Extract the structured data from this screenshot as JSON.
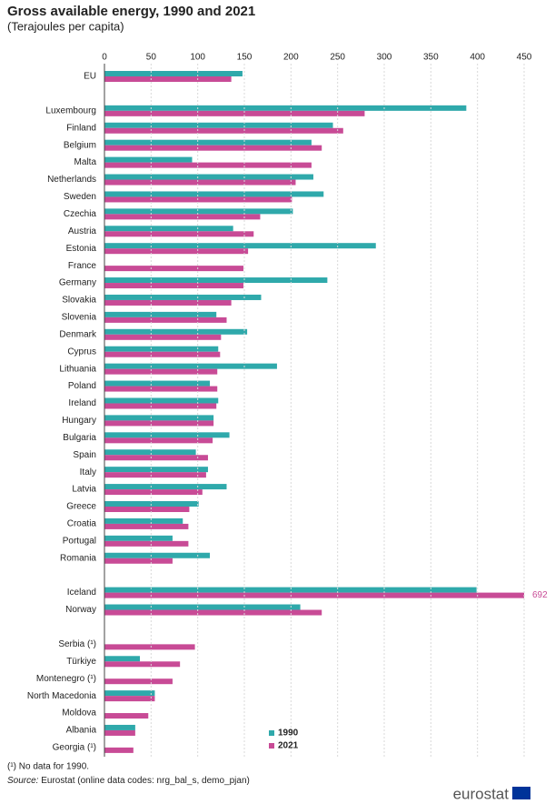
{
  "chart_data": {
    "type": "bar",
    "orientation": "horizontal",
    "title": "Gross available energy, 1990 and 2021",
    "subtitle": "(Terajoules per capita)",
    "categories": [
      "EU",
      null,
      "Luxembourg",
      "Finland",
      "Belgium",
      "Malta",
      "Netherlands",
      "Sweden",
      "Czechia",
      "Austria",
      "Estonia",
      "France",
      "Germany",
      "Slovakia",
      "Slovenia",
      "Denmark",
      "Cyprus",
      "Lithuania",
      "Poland",
      "Ireland",
      "Hungary",
      "Bulgaria",
      "Spain",
      "Italy",
      "Latvia",
      "Greece",
      "Croatia",
      "Portugal",
      "Romania",
      null,
      "Iceland",
      "Norway",
      null,
      "Serbia (¹)",
      "Türkiye",
      "Montenegro (¹)",
      "North Macedonia",
      "Moldova",
      "Albania",
      "Georgia (¹)"
    ],
    "series": [
      {
        "name": "1990",
        "color": "#2fa9ab",
        "values": [
          148,
          null,
          388,
          245,
          222,
          94,
          224,
          235,
          202,
          138,
          291,
          null,
          239,
          168,
          120,
          153,
          122,
          185,
          113,
          122,
          117,
          134,
          98,
          111,
          131,
          101,
          84,
          73,
          113,
          null,
          399,
          210,
          null,
          null,
          38,
          null,
          54,
          null,
          33,
          null
        ]
      },
      {
        "name": "2021",
        "color": "#c84b96",
        "values": [
          136,
          null,
          279,
          256,
          233,
          222,
          205,
          201,
          167,
          160,
          154,
          149,
          149,
          136,
          131,
          125,
          124,
          121,
          121,
          120,
          117,
          116,
          111,
          109,
          105,
          91,
          90,
          90,
          73,
          null,
          692,
          233,
          null,
          97,
          81,
          73,
          54,
          47,
          33,
          31
        ],
        "value_labels": [
          null,
          null,
          null,
          null,
          null,
          null,
          null,
          null,
          null,
          null,
          null,
          null,
          null,
          null,
          null,
          null,
          null,
          null,
          null,
          null,
          null,
          null,
          null,
          null,
          null,
          null,
          null,
          null,
          null,
          null,
          "692",
          null,
          null,
          null,
          null,
          null,
          null,
          null,
          null,
          null
        ]
      }
    ],
    "xlim": [
      0,
      450
    ],
    "xticks": [
      0,
      50,
      100,
      150,
      200,
      250,
      300,
      350,
      400,
      450
    ],
    "grid": true,
    "legend": "bottom",
    "footnote": "(¹) No data for 1990.",
    "source_label": "Source:",
    "source": " Eurostat (online data codes: nrg_bal_s, demo_pjan)",
    "logo": "eurostat"
  }
}
